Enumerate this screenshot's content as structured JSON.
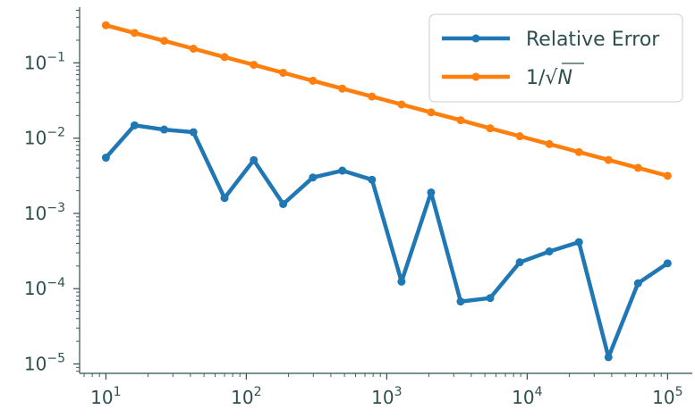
{
  "chart_data": {
    "type": "line",
    "xscale": "log",
    "yscale": "log",
    "xlim": [
      6.5,
      150000
    ],
    "ylim": [
      7.5e-06,
      0.55
    ],
    "x_ticks": [
      10,
      100,
      1000,
      10000,
      100000
    ],
    "x_tick_labels": [
      {
        "base": "10",
        "exp": "1"
      },
      {
        "base": "10",
        "exp": "2"
      },
      {
        "base": "10",
        "exp": "3"
      },
      {
        "base": "10",
        "exp": "4"
      },
      {
        "base": "10",
        "exp": "5"
      }
    ],
    "y_ticks": [
      0.1,
      0.01,
      0.001,
      0.0001,
      1e-05
    ],
    "y_tick_labels": [
      {
        "base": "10",
        "exp": "−1"
      },
      {
        "base": "10",
        "exp": "−2"
      },
      {
        "base": "10",
        "exp": "−3"
      },
      {
        "base": "10",
        "exp": "−4"
      },
      {
        "base": "10",
        "exp": "−5"
      }
    ],
    "grid": false,
    "legend_position": "top-right",
    "x": [
      10,
      16,
      26,
      42,
      70,
      113,
      183,
      298,
      483,
      785,
      1274,
      2069,
      3359,
      5455,
      8859,
      14384,
      23357,
      37927,
      61585,
      100000
    ],
    "series": [
      {
        "name": "Relative Error",
        "color": "#1f77b4",
        "values": [
          0.0055,
          0.0148,
          0.013,
          0.012,
          0.0016,
          0.0051,
          0.00133,
          0.003,
          0.0037,
          0.0028,
          0.000124,
          0.0019,
          6.75e-05,
          7.5e-05,
          0.000224,
          0.000312,
          0.000415,
          1.23e-05,
          0.000118,
          0.000217
        ]
      },
      {
        "name_parts": [
          "1/",
          "N"
        ],
        "color": "#ff7f0e",
        "values": [
          0.3162,
          0.25,
          0.1961,
          0.1543,
          0.1195,
          0.0941,
          0.0739,
          0.0579,
          0.0455,
          0.0357,
          0.028,
          0.022,
          0.0173,
          0.0135,
          0.0106,
          0.00834,
          0.00654,
          0.00513,
          0.00403,
          0.00316
        ]
      }
    ]
  }
}
